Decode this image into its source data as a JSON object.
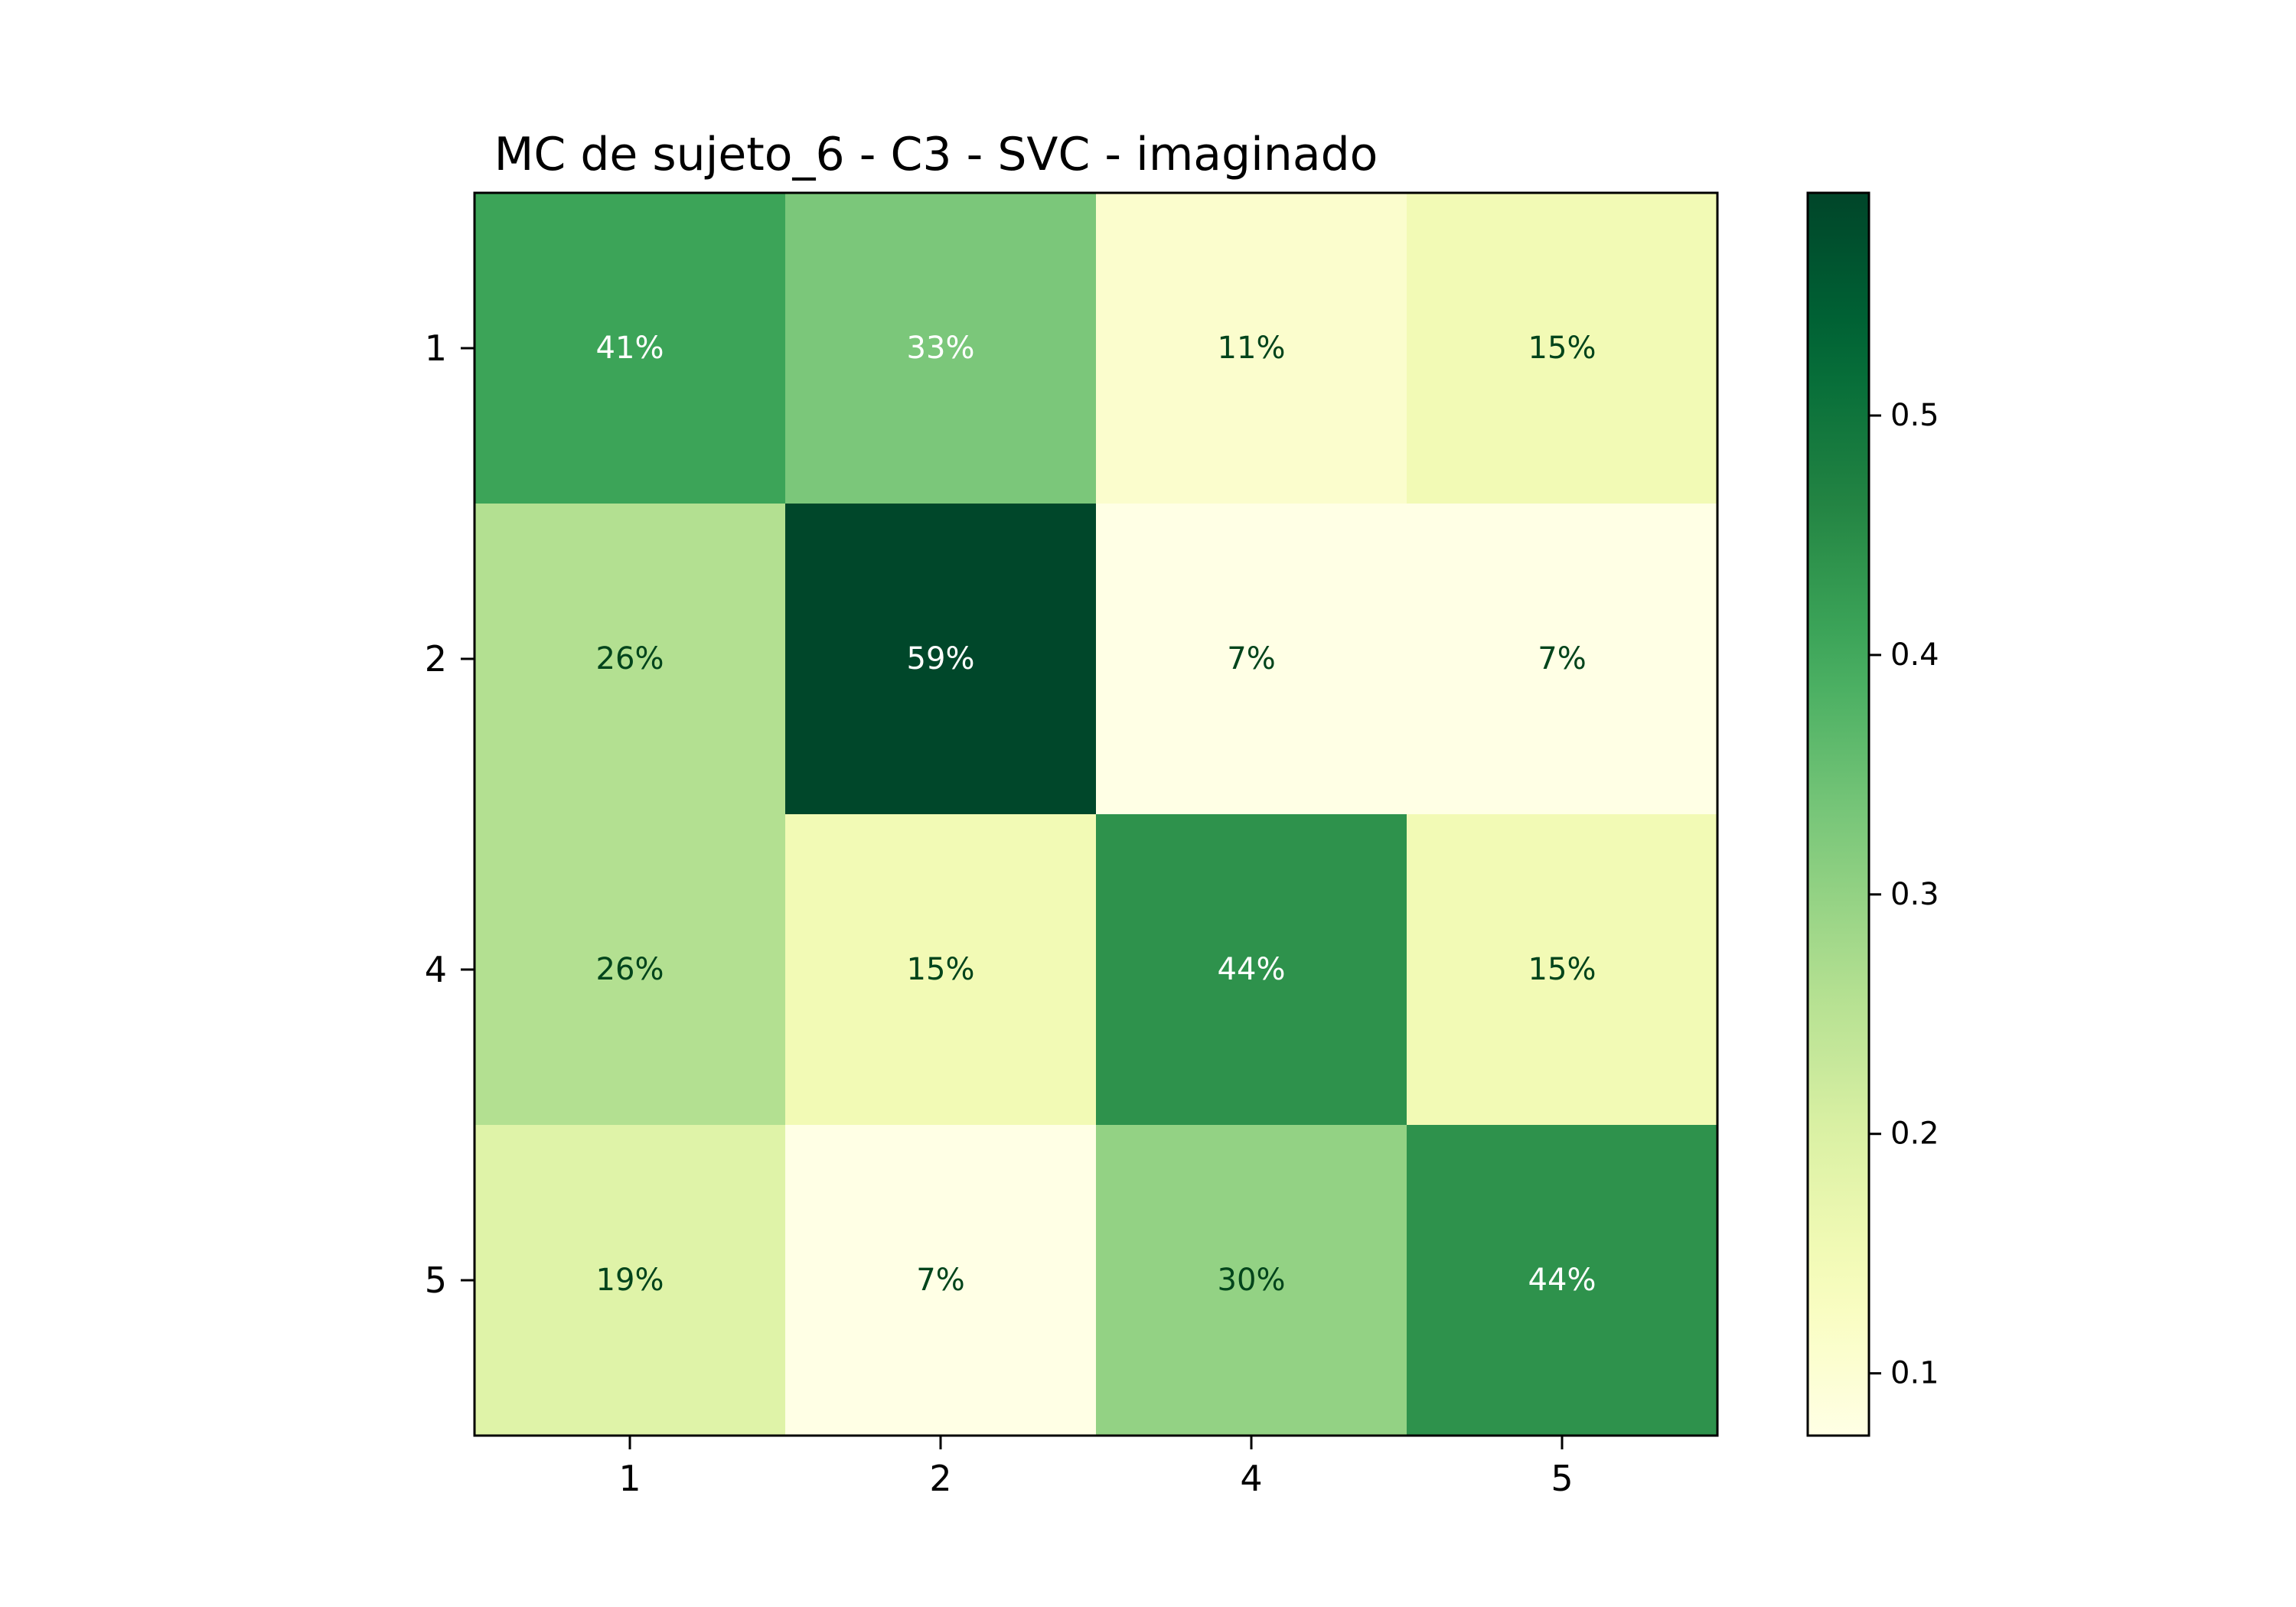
{
  "chart_data": {
    "type": "heatmap",
    "title": "MC de sujeto_6 - C3 - SVC - imaginado",
    "xlabel": "",
    "ylabel": "",
    "x_categories": [
      "1",
      "2",
      "4",
      "5"
    ],
    "y_categories": [
      "1",
      "2",
      "4",
      "5"
    ],
    "values": [
      [
        0.41,
        0.33,
        0.11,
        0.15
      ],
      [
        0.26,
        0.59,
        0.07,
        0.07
      ],
      [
        0.26,
        0.15,
        0.44,
        0.15
      ],
      [
        0.19,
        0.07,
        0.3,
        0.44
      ]
    ],
    "cell_labels": [
      [
        "41%",
        "33%",
        "11%",
        "15%"
      ],
      [
        "26%",
        "59%",
        "7%",
        "7%"
      ],
      [
        "26%",
        "15%",
        "44%",
        "15%"
      ],
      [
        "19%",
        "7%",
        "30%",
        "44%"
      ]
    ],
    "colormap": "YlGn",
    "colorbar": {
      "range": [
        0.074,
        0.593
      ],
      "ticks": [
        0.1,
        0.2,
        0.3,
        0.4,
        0.5
      ],
      "tick_labels": [
        "0.1",
        "0.2",
        "0.3",
        "0.4",
        "0.5"
      ],
      "placement": "right"
    },
    "colors": {
      "light_text": "#ffffff",
      "dark_text": "#00441b",
      "frame": "#000000"
    },
    "grid": false
  }
}
